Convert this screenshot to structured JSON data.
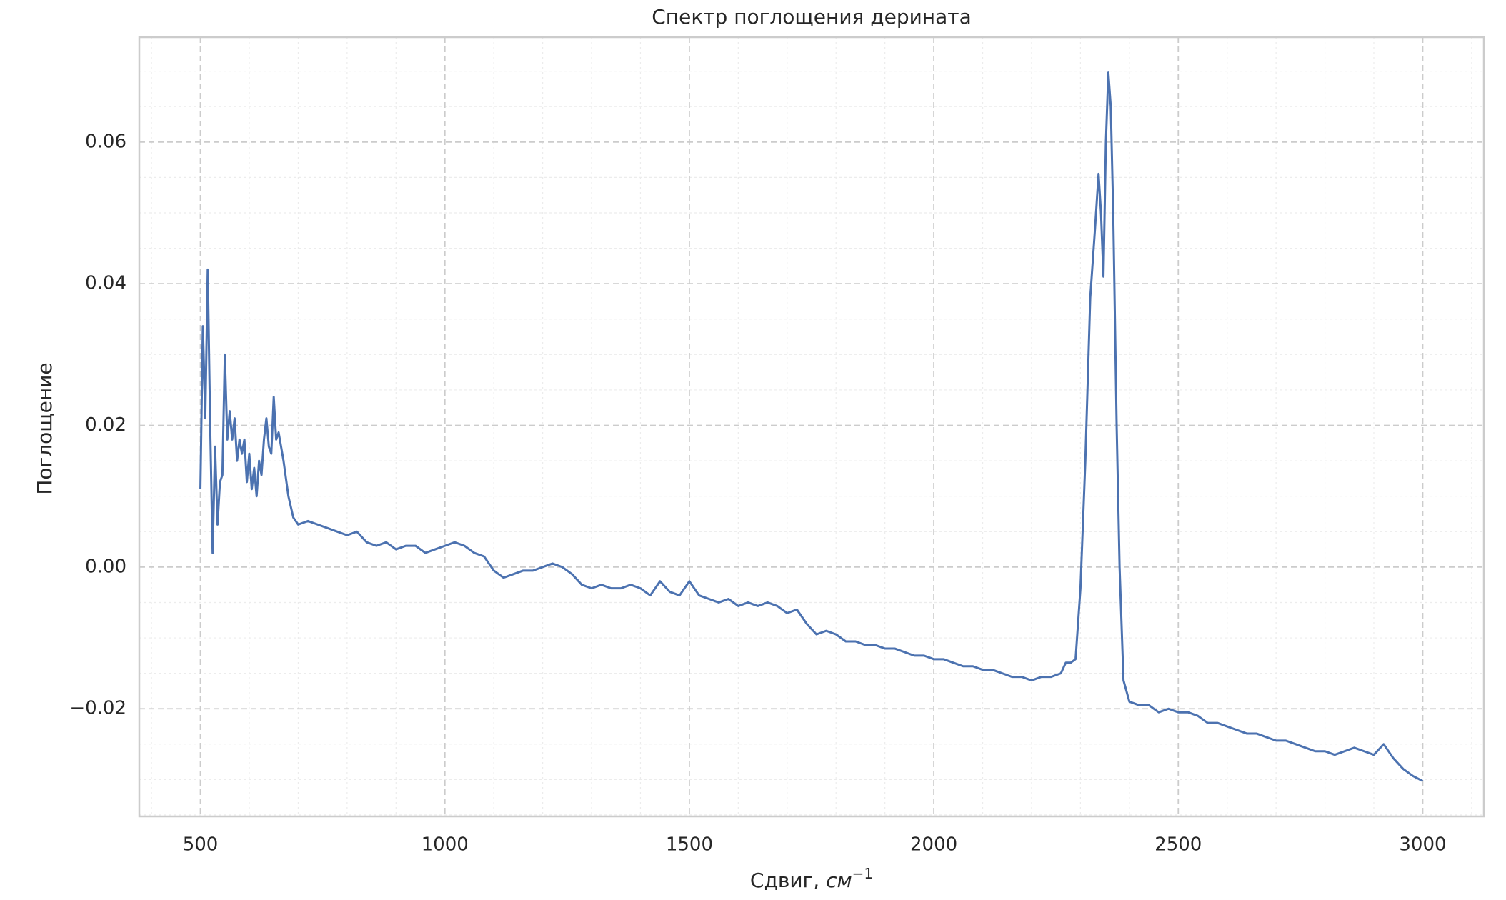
{
  "chart_data": {
    "type": "line",
    "title": "Спектр поглощения дерината",
    "xlabel": {
      "text": "Сдвиг,",
      "unit": "см",
      "exponent": "−1"
    },
    "ylabel": "Поглощение",
    "x": [
      500,
      505,
      510,
      515,
      520,
      525,
      530,
      535,
      540,
      545,
      550,
      555,
      560,
      565,
      570,
      575,
      580,
      585,
      590,
      595,
      600,
      605,
      610,
      615,
      620,
      625,
      630,
      635,
      640,
      645,
      650,
      655,
      660,
      665,
      670,
      680,
      690,
      700,
      720,
      740,
      760,
      780,
      800,
      820,
      840,
      860,
      880,
      900,
      920,
      940,
      960,
      980,
      1000,
      1020,
      1040,
      1060,
      1080,
      1100,
      1120,
      1140,
      1160,
      1180,
      1200,
      1220,
      1240,
      1260,
      1280,
      1300,
      1320,
      1340,
      1360,
      1380,
      1400,
      1420,
      1440,
      1460,
      1480,
      1500,
      1520,
      1540,
      1560,
      1580,
      1600,
      1620,
      1640,
      1660,
      1680,
      1700,
      1720,
      1740,
      1760,
      1780,
      1800,
      1820,
      1840,
      1860,
      1880,
      1900,
      1920,
      1940,
      1960,
      1980,
      2000,
      2020,
      2040,
      2060,
      2080,
      2100,
      2120,
      2140,
      2160,
      2180,
      2200,
      2220,
      2240,
      2260,
      2270,
      2280,
      2290,
      2300,
      2310,
      2320,
      2330,
      2337,
      2342,
      2347,
      2352,
      2357,
      2362,
      2367,
      2374,
      2380,
      2388,
      2400,
      2420,
      2440,
      2460,
      2480,
      2500,
      2520,
      2540,
      2560,
      2580,
      2600,
      2620,
      2640,
      2660,
      2680,
      2700,
      2720,
      2740,
      2760,
      2780,
      2800,
      2820,
      2840,
      2860,
      2880,
      2900,
      2920,
      2940,
      2960,
      2980,
      3000
    ],
    "series": [
      {
        "color": "#4c72b0",
        "values": [
          0.011,
          0.034,
          0.021,
          0.042,
          0.02,
          0.002,
          0.017,
          0.006,
          0.012,
          0.013,
          0.03,
          0.018,
          0.022,
          0.018,
          0.021,
          0.015,
          0.018,
          0.016,
          0.018,
          0.012,
          0.016,
          0.011,
          0.014,
          0.01,
          0.015,
          0.013,
          0.018,
          0.021,
          0.017,
          0.016,
          0.024,
          0.018,
          0.019,
          0.017,
          0.015,
          0.01,
          0.007,
          0.006,
          0.0065,
          0.006,
          0.0055,
          0.005,
          0.0045,
          0.005,
          0.0035,
          0.003,
          0.0035,
          0.0025,
          0.003,
          0.003,
          0.002,
          0.0025,
          0.003,
          0.0035,
          0.003,
          0.002,
          0.0015,
          -0.0005,
          -0.0015,
          -0.001,
          -0.0005,
          -0.0005,
          0.0,
          0.0005,
          0.0,
          -0.001,
          -0.0025,
          -0.003,
          -0.0025,
          -0.003,
          -0.003,
          -0.0025,
          -0.003,
          -0.004,
          -0.002,
          -0.0035,
          -0.004,
          -0.002,
          -0.004,
          -0.0045,
          -0.005,
          -0.0045,
          -0.0055,
          -0.005,
          -0.0055,
          -0.005,
          -0.0055,
          -0.0065,
          -0.006,
          -0.008,
          -0.0095,
          -0.009,
          -0.0095,
          -0.0105,
          -0.0105,
          -0.011,
          -0.011,
          -0.0115,
          -0.0115,
          -0.012,
          -0.0125,
          -0.0125,
          -0.013,
          -0.013,
          -0.0135,
          -0.014,
          -0.014,
          -0.0145,
          -0.0145,
          -0.015,
          -0.0155,
          -0.0155,
          -0.016,
          -0.0155,
          -0.0155,
          -0.015,
          -0.0135,
          -0.0135,
          -0.013,
          -0.003,
          0.015,
          0.038,
          0.048,
          0.0555,
          0.05,
          0.041,
          0.06,
          0.0698,
          0.065,
          0.05,
          0.02,
          0.0,
          -0.016,
          -0.019,
          -0.0195,
          -0.0195,
          -0.0205,
          -0.02,
          -0.0205,
          -0.0205,
          -0.021,
          -0.022,
          -0.022,
          -0.0225,
          -0.023,
          -0.0235,
          -0.0235,
          -0.024,
          -0.0245,
          -0.0245,
          -0.025,
          -0.0255,
          -0.026,
          -0.026,
          -0.0265,
          -0.026,
          -0.0255,
          -0.026,
          -0.0265,
          -0.025,
          -0.027,
          -0.0285,
          -0.0295,
          -0.0302
        ]
      }
    ],
    "xlim": [
      375,
      3125
    ],
    "ylim": [
      -0.0352,
      0.0748
    ],
    "xticks": [
      500,
      1000,
      1500,
      2000,
      2500,
      3000
    ],
    "yticks": [
      {
        "value": -0.02,
        "label": "−0.02"
      },
      {
        "value": 0,
        "label": "0.00"
      },
      {
        "value": 0.02,
        "label": "0.02"
      },
      {
        "value": 0.04,
        "label": "0.04"
      },
      {
        "value": 0.06,
        "label": "0.06"
      }
    ],
    "xminorticks": [
      400,
      600,
      700,
      800,
      900,
      1100,
      1200,
      1300,
      1400,
      1600,
      1700,
      1800,
      1900,
      2100,
      2200,
      2300,
      2400,
      2600,
      2700,
      2800,
      2900,
      3100
    ],
    "yminorticks": [
      -0.035,
      -0.03,
      -0.025,
      -0.015,
      -0.01,
      -0.005,
      0.005,
      0.01,
      0.015,
      0.025,
      0.03,
      0.035,
      0.045,
      0.05,
      0.055,
      0.065,
      0.07
    ],
    "grid": true
  }
}
